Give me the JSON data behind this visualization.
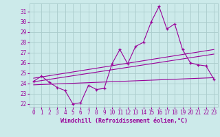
{
  "xlabel": "Windchill (Refroidissement éolien,°C)",
  "background_color": "#cceaea",
  "grid_color": "#aacccc",
  "line_color": "#990099",
  "xlim": [
    -0.5,
    23.5
  ],
  "ylim": [
    21.7,
    31.8
  ],
  "yticks": [
    22,
    23,
    24,
    25,
    26,
    27,
    28,
    29,
    30,
    31
  ],
  "xticks": [
    0,
    1,
    2,
    3,
    4,
    5,
    6,
    7,
    8,
    9,
    10,
    11,
    12,
    13,
    14,
    15,
    16,
    17,
    18,
    19,
    20,
    21,
    22,
    23
  ],
  "main_x": [
    0,
    1,
    2,
    3,
    4,
    5,
    6,
    7,
    8,
    9,
    10,
    11,
    12,
    13,
    14,
    15,
    16,
    17,
    18,
    19,
    20,
    21,
    22,
    23
  ],
  "main_y": [
    24.2,
    24.7,
    24.1,
    23.6,
    23.3,
    22.0,
    22.1,
    23.8,
    23.4,
    23.5,
    25.9,
    27.3,
    25.9,
    27.6,
    28.0,
    30.0,
    31.5,
    29.3,
    29.8,
    27.3,
    26.0,
    25.8,
    25.7,
    24.4
  ],
  "trend1_x": [
    0,
    23
  ],
  "trend1_y": [
    24.15,
    26.85
  ],
  "trend2_x": [
    0,
    23
  ],
  "trend2_y": [
    23.85,
    24.55
  ],
  "trend3_x": [
    0,
    23
  ],
  "trend3_y": [
    24.5,
    27.3
  ]
}
